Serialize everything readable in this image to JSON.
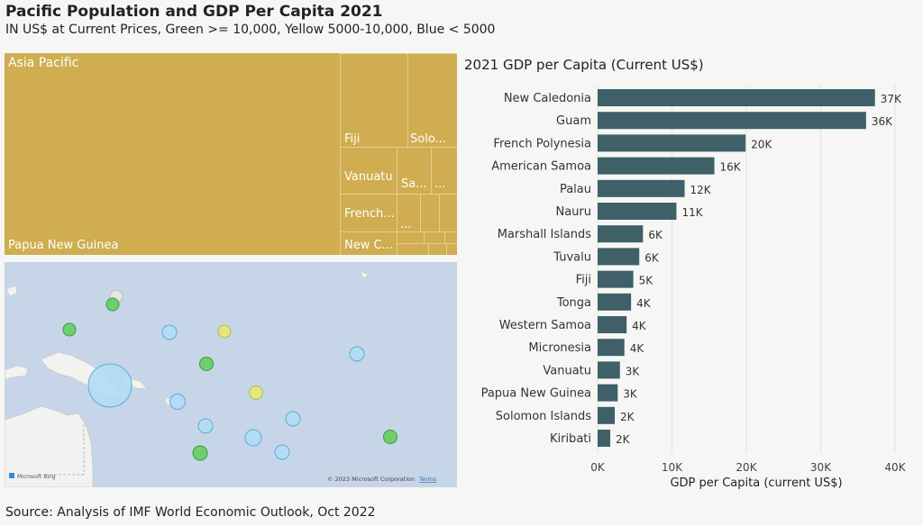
{
  "header": {
    "title": "Pacific Population and GDP Per Capita 2021",
    "subtitle": "IN US$ at Current Prices, Green >= 10,000, Yellow 5000-10,000, Blue < 5000"
  },
  "treemap": {
    "region": "Asia Pacific",
    "labels": {
      "papua": "Papua New Guinea",
      "fiji": "Fiji",
      "solomon": "Solo...",
      "vanuatu": "Vanuatu",
      "samoa": "Sa...",
      "ellipsis": "...",
      "french": "French...",
      "newcal": "New C..."
    }
  },
  "map": {
    "attribution": "© 2023 Microsoft Corporation",
    "terms": "Terms",
    "logo": "Microsoft Bing",
    "colors": {
      "green": "#6fcf6f",
      "yellow": "#e3e67a",
      "blue": "#b3dcf4"
    }
  },
  "source": "Source: Analysis of IMF World Economic Outlook, Oct 2022",
  "chart_data": {
    "type": "bar",
    "title": "2021 GDP per Capita (Current US$)",
    "xlabel": "GDP per Capita (current US$)",
    "categories": [
      "New Caledonia",
      "Guam",
      "French Polynesia",
      "American Samoa",
      "Palau",
      "Nauru",
      "Marshall Islands",
      "Tuvalu",
      "Fiji",
      "Tonga",
      "Western Samoa",
      "Micronesia",
      "Vanuatu",
      "Papua New Guinea",
      "Solomon Islands",
      "Kiribati"
    ],
    "values": [
      37300,
      36100,
      19900,
      15700,
      11700,
      10600,
      6100,
      5600,
      4800,
      4500,
      3900,
      3600,
      3000,
      2700,
      2300,
      1700
    ],
    "value_labels": [
      "37K",
      "36K",
      "20K",
      "16K",
      "12K",
      "11K",
      "6K",
      "6K",
      "5K",
      "4K",
      "4K",
      "4K",
      "3K",
      "3K",
      "2K",
      "2K"
    ],
    "xticks": [
      0,
      10000,
      20000,
      30000,
      40000
    ],
    "xtick_labels": [
      "0K",
      "10K",
      "20K",
      "30K",
      "40K"
    ],
    "xlim": [
      0,
      40000
    ],
    "bar_color": "#3f5f69"
  }
}
